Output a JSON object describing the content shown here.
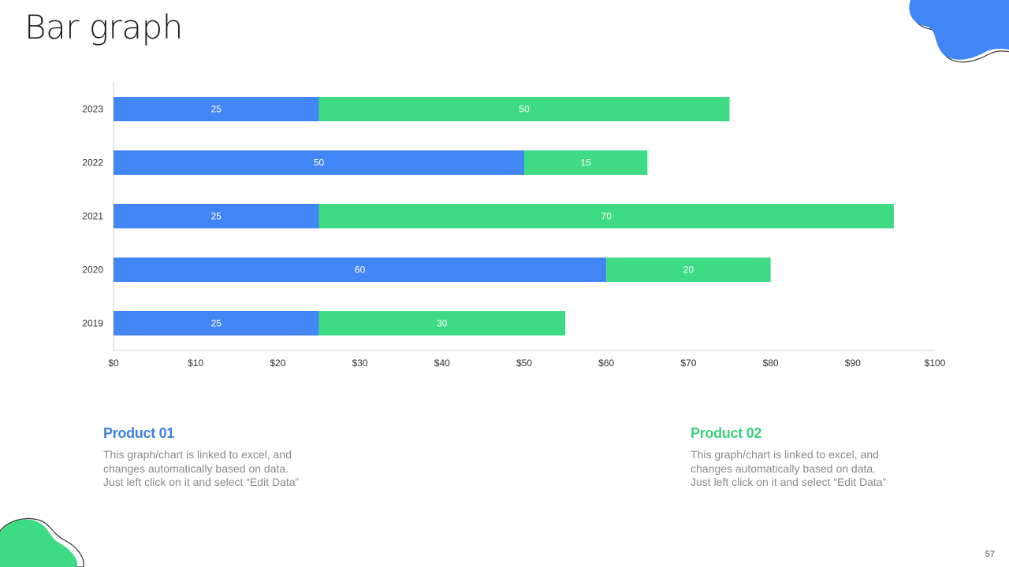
{
  "slide": {
    "title": "Bar graph",
    "page_number": "57"
  },
  "colors": {
    "product01": "#4285f4",
    "product02": "#3ddc84",
    "axis": "#d0d0d0",
    "tick_text": "#333333",
    "label_text": "#ffffff"
  },
  "chart_data": {
    "type": "bar",
    "orientation": "horizontal",
    "stacked": true,
    "categories": [
      "2023",
      "2022",
      "2021",
      "2020",
      "2019"
    ],
    "series": [
      {
        "name": "Product 01",
        "values": [
          25,
          50,
          25,
          60,
          25
        ]
      },
      {
        "name": "Product 02",
        "values": [
          50,
          15,
          70,
          20,
          30
        ]
      }
    ],
    "x_ticks": [
      "$0",
      "$10",
      "$20",
      "$30",
      "$40",
      "$50",
      "$60",
      "$70",
      "$80",
      "$90",
      "$100"
    ],
    "xlim": [
      0,
      100
    ],
    "xlabel": "",
    "ylabel": "",
    "data_labels": true,
    "grid": false,
    "legend": "bottom"
  },
  "legend": [
    {
      "title": "Product 01",
      "desc_lines": [
        "This graph/chart is linked to excel, and",
        "changes automatically based on data.",
        "Just left click on it and select “Edit Data”"
      ]
    },
    {
      "title": "Product 02",
      "desc_lines": [
        "This graph/chart is linked to excel, and",
        "changes automatically based on data.",
        "Just left click on it and select “Edit Data”"
      ]
    }
  ]
}
